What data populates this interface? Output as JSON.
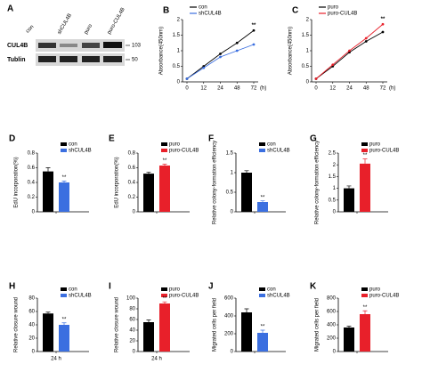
{
  "blot": {
    "panel": "A",
    "lanes": [
      "con",
      "shCUL4B",
      "puro",
      "puro-CUL4B"
    ],
    "rows": [
      "CUL4B",
      "Tublin"
    ],
    "markers": [
      "103",
      "50"
    ]
  },
  "chart_data": [
    {
      "type": "line",
      "panel": "B",
      "ylabel": "Absorbance(450nm)",
      "xlabel": "(h)",
      "categories": [
        "0",
        "12",
        "24",
        "48",
        "72"
      ],
      "series": [
        {
          "name": "con",
          "color": "#000000",
          "values": [
            0.1,
            0.5,
            0.9,
            1.25,
            1.65
          ]
        },
        {
          "name": "shCUL4B",
          "color": "#3b6fe0",
          "values": [
            0.1,
            0.45,
            0.8,
            1.0,
            1.2
          ]
        }
      ],
      "ylim": [
        0,
        2
      ],
      "yticks": [
        0,
        0.5,
        1,
        1.5,
        2
      ],
      "annotation": "**"
    },
    {
      "type": "line",
      "panel": "C",
      "ylabel": "Absorbance(450nm)",
      "xlabel": "(h)",
      "categories": [
        "0",
        "12",
        "24",
        "48",
        "72"
      ],
      "series": [
        {
          "name": "puro",
          "color": "#000000",
          "values": [
            0.1,
            0.5,
            0.95,
            1.3,
            1.6
          ]
        },
        {
          "name": "puro-CUL4B",
          "color": "#e8202a",
          "values": [
            0.1,
            0.55,
            1.0,
            1.4,
            1.85
          ]
        }
      ],
      "ylim": [
        0,
        2
      ],
      "yticks": [
        0,
        0.5,
        1,
        1.5,
        2
      ],
      "annotation": "**"
    },
    {
      "type": "bar",
      "panel": "D",
      "ylabel": "EdU incorporation(%)",
      "series": [
        {
          "name": "con",
          "color": "#000000",
          "values": [
            0.55
          ],
          "errors": [
            0.05
          ]
        },
        {
          "name": "shCUL4B",
          "color": "#3b6fe0",
          "values": [
            0.4
          ],
          "errors": [
            0.02
          ]
        }
      ],
      "ylim": [
        0,
        0.8
      ],
      "yticks": [
        0,
        0.2,
        0.4,
        0.6,
        0.8
      ],
      "annotation": "**"
    },
    {
      "type": "bar",
      "panel": "E",
      "ylabel": "EdU incorporation(%)",
      "series": [
        {
          "name": "puro",
          "color": "#000000",
          "values": [
            0.52
          ],
          "errors": [
            0.02
          ]
        },
        {
          "name": "puro-CUL4B",
          "color": "#e8202a",
          "values": [
            0.63
          ],
          "errors": [
            0.02
          ]
        }
      ],
      "ylim": [
        0,
        0.8
      ],
      "yticks": [
        0,
        0.2,
        0.4,
        0.6,
        0.8
      ],
      "annotation": "**"
    },
    {
      "type": "bar",
      "panel": "F",
      "ylabel": "Relative colony-formation efficiency",
      "series": [
        {
          "name": "con",
          "color": "#000000",
          "values": [
            1.0
          ],
          "errors": [
            0.05
          ]
        },
        {
          "name": "shCUL4B",
          "color": "#3b6fe0",
          "values": [
            0.25
          ],
          "errors": [
            0.03
          ]
        }
      ],
      "ylim": [
        0,
        1.5
      ],
      "yticks": [
        0,
        0.5,
        1,
        1.5
      ],
      "annotation": "**"
    },
    {
      "type": "bar",
      "panel": "G",
      "ylabel": "Relative colony-formation efficiency",
      "series": [
        {
          "name": "puro",
          "color": "#000000",
          "values": [
            1.0
          ],
          "errors": [
            0.1
          ]
        },
        {
          "name": "puro-CUL4B",
          "color": "#e8202a",
          "values": [
            2.05
          ],
          "errors": [
            0.2
          ]
        }
      ],
      "ylim": [
        0,
        2.5
      ],
      "yticks": [
        0,
        0.5,
        1,
        1.5,
        2,
        2.5
      ],
      "annotation": "**"
    },
    {
      "type": "bar",
      "panel": "H",
      "ylabel": "Relative closure wound",
      "xlabel": "24 h",
      "series": [
        {
          "name": "con",
          "color": "#000000",
          "values": [
            57
          ],
          "errors": [
            2
          ]
        },
        {
          "name": "shCUL4B",
          "color": "#3b6fe0",
          "values": [
            40
          ],
          "errors": [
            3
          ]
        }
      ],
      "ylim": [
        0,
        80
      ],
      "yticks": [
        0,
        20,
        40,
        60,
        80
      ],
      "annotation": "**"
    },
    {
      "type": "bar",
      "panel": "I",
      "ylabel": "Relative closure wound",
      "xlabel": "24 h",
      "series": [
        {
          "name": "puro",
          "color": "#000000",
          "values": [
            55
          ],
          "errors": [
            4
          ]
        },
        {
          "name": "puro-CUL4B",
          "color": "#e8202a",
          "values": [
            90
          ],
          "errors": [
            3
          ]
        }
      ],
      "ylim": [
        0,
        100
      ],
      "yticks": [
        0,
        20,
        40,
        60,
        80,
        100
      ],
      "annotation": "**"
    },
    {
      "type": "bar",
      "panel": "J",
      "ylabel": "Migrated cells per field",
      "series": [
        {
          "name": "con",
          "color": "#000000",
          "values": [
            440
          ],
          "errors": [
            40
          ]
        },
        {
          "name": "shCUL4B",
          "color": "#3b6fe0",
          "values": [
            210
          ],
          "errors": [
            30
          ]
        }
      ],
      "ylim": [
        0,
        600
      ],
      "yticks": [
        0,
        200,
        400,
        600
      ],
      "annotation": "**"
    },
    {
      "type": "bar",
      "panel": "K",
      "ylabel": "Migrated cells per field",
      "series": [
        {
          "name": "puro",
          "color": "#000000",
          "values": [
            360
          ],
          "errors": [
            20
          ]
        },
        {
          "name": "puro-CUL4B",
          "color": "#e8202a",
          "values": [
            560
          ],
          "errors": [
            50
          ]
        }
      ],
      "ylim": [
        0,
        800
      ],
      "yticks": [
        0,
        200,
        400,
        600,
        800
      ],
      "annotation": "**"
    }
  ]
}
